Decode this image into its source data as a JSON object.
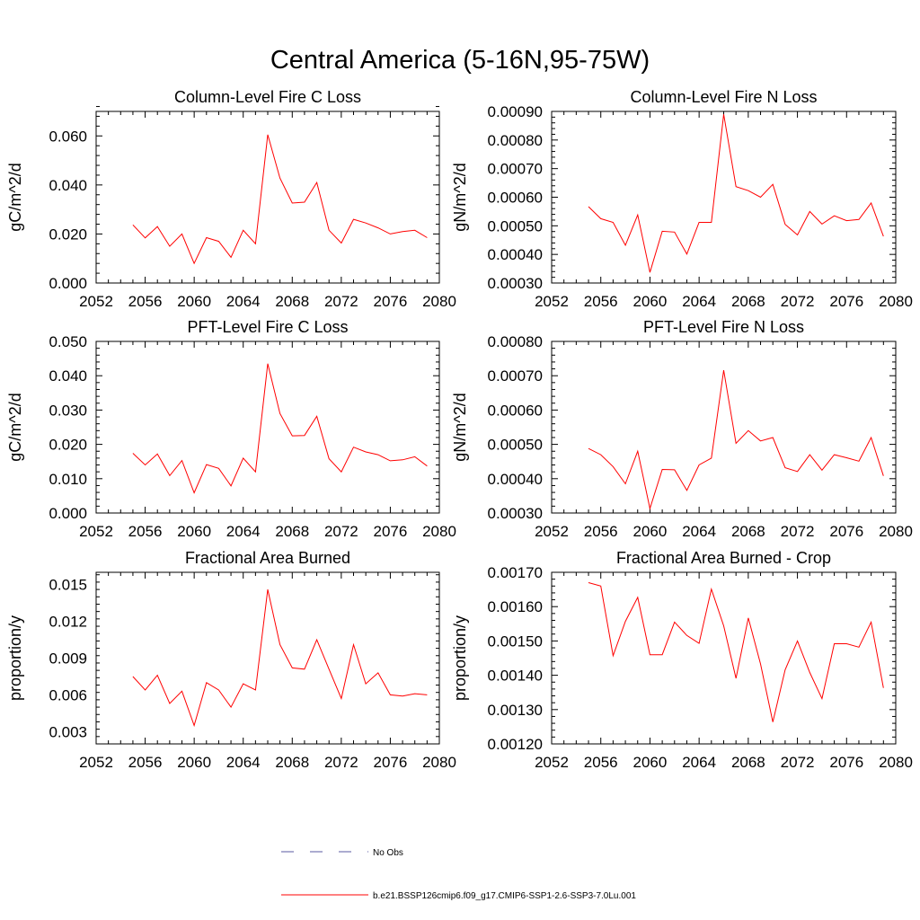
{
  "page_title": "Central America (5-16N,95-75W)",
  "legend": {
    "obs_label": "No Obs",
    "model_label": "b.e21.BSSP126cmip6.f09_g17.CMIP6-SSP1-2.6-SSP3-7.0Lu.001",
    "model_color": "#ff0000",
    "obs_color": "#5a5aa0"
  },
  "chart_data": [
    {
      "type": "line",
      "title": "Column-Level Fire C Loss",
      "ylabel": "gC/m^2/d",
      "xlabel": "",
      "xlim": [
        2052,
        2080
      ],
      "ylim": [
        0,
        0.07
      ],
      "xticks": [
        "2052",
        "2056",
        "2060",
        "2064",
        "2068",
        "2072",
        "2076",
        "2080"
      ],
      "yticks": [
        "0.000",
        "0.020",
        "0.040",
        "0.060"
      ],
      "grid": false,
      "series": [
        {
          "color": "#ff0000",
          "x": [
            2055,
            2056,
            2057,
            2058,
            2059,
            2060,
            2061,
            2062,
            2063,
            2064,
            2065,
            2066,
            2067,
            2068,
            2069,
            2070,
            2071,
            2072,
            2073,
            2074,
            2075,
            2076,
            2077,
            2078,
            2079
          ],
          "y": [
            0.0237,
            0.0184,
            0.023,
            0.015,
            0.02,
            0.008,
            0.0185,
            0.017,
            0.0105,
            0.0215,
            0.016,
            0.0605,
            0.0428,
            0.0326,
            0.033,
            0.041,
            0.0215,
            0.0163,
            0.026,
            0.0245,
            0.0225,
            0.02,
            0.021,
            0.0215,
            0.0185
          ]
        }
      ]
    },
    {
      "type": "line",
      "title": "Column-Level Fire N Loss",
      "ylabel": "gN/m^2/d",
      "xlabel": "",
      "xlim": [
        2052,
        2080
      ],
      "ylim": [
        0.0003,
        0.0009
      ],
      "xticks": [
        "2052",
        "2056",
        "2060",
        "2064",
        "2068",
        "2072",
        "2076",
        "2080"
      ],
      "yticks": [
        "0.00030",
        "0.00040",
        "0.00050",
        "0.00060",
        "0.00070",
        "0.00080",
        "0.00090"
      ],
      "grid": false,
      "series": [
        {
          "color": "#ff0000",
          "x": [
            2055,
            2056,
            2057,
            2058,
            2059,
            2060,
            2061,
            2062,
            2063,
            2064,
            2065,
            2066,
            2067,
            2068,
            2069,
            2070,
            2071,
            2072,
            2073,
            2074,
            2075,
            2076,
            2077,
            2078,
            2079
          ],
          "y": [
            0.000567,
            0.000525,
            0.000512,
            0.000432,
            0.000538,
            0.000337,
            0.000481,
            0.000478,
            0.000401,
            0.000512,
            0.000512,
            0.00089,
            0.000637,
            0.000623,
            0.0006,
            0.000645,
            0.000505,
            0.000468,
            0.00055,
            0.000506,
            0.000535,
            0.000518,
            0.000522,
            0.00058,
            0.000463
          ]
        }
      ]
    },
    {
      "type": "line",
      "title": "PFT-Level Fire C Loss",
      "ylabel": "gC/m^2/d",
      "xlabel": "",
      "xlim": [
        2052,
        2080
      ],
      "ylim": [
        0,
        0.05
      ],
      "xticks": [
        "2052",
        "2056",
        "2060",
        "2064",
        "2068",
        "2072",
        "2076",
        "2080"
      ],
      "yticks": [
        "0.000",
        "0.010",
        "0.020",
        "0.030",
        "0.040",
        "0.050"
      ],
      "grid": false,
      "series": [
        {
          "color": "#ff0000",
          "x": [
            2055,
            2056,
            2057,
            2058,
            2059,
            2060,
            2061,
            2062,
            2063,
            2064,
            2065,
            2066,
            2067,
            2068,
            2069,
            2070,
            2071,
            2072,
            2073,
            2074,
            2075,
            2076,
            2077,
            2078,
            2079
          ],
          "y": [
            0.0174,
            0.014,
            0.0172,
            0.0109,
            0.0153,
            0.0059,
            0.0141,
            0.013,
            0.0079,
            0.016,
            0.012,
            0.0435,
            0.029,
            0.0225,
            0.0226,
            0.0282,
            0.0158,
            0.012,
            0.0192,
            0.0178,
            0.017,
            0.0152,
            0.0155,
            0.0164,
            0.0137
          ]
        }
      ]
    },
    {
      "type": "line",
      "title": "PFT-Level Fire N Loss",
      "ylabel": "gN/m^2/d",
      "xlabel": "",
      "xlim": [
        2052,
        2080
      ],
      "ylim": [
        0.0003,
        0.0008
      ],
      "xticks": [
        "2052",
        "2056",
        "2060",
        "2064",
        "2068",
        "2072",
        "2076",
        "2080"
      ],
      "yticks": [
        "0.00030",
        "0.00040",
        "0.00050",
        "0.00060",
        "0.00070",
        "0.00080"
      ],
      "grid": false,
      "series": [
        {
          "color": "#ff0000",
          "x": [
            2055,
            2056,
            2057,
            2058,
            2059,
            2060,
            2061,
            2062,
            2063,
            2064,
            2065,
            2066,
            2067,
            2068,
            2069,
            2070,
            2071,
            2072,
            2073,
            2074,
            2075,
            2076,
            2077,
            2078,
            2079
          ],
          "y": [
            0.000488,
            0.00047,
            0.000435,
            0.000385,
            0.00048,
            0.000313,
            0.000427,
            0.000426,
            0.000366,
            0.00044,
            0.00046,
            0.000716,
            0.000503,
            0.00054,
            0.00051,
            0.00052,
            0.000432,
            0.000421,
            0.00047,
            0.000425,
            0.00047,
            0.000461,
            0.000451,
            0.00052,
            0.000408
          ]
        }
      ]
    },
    {
      "type": "line",
      "title": "Fractional Area Burned",
      "ylabel": "proportion/y",
      "xlabel": "",
      "xlim": [
        2052,
        2080
      ],
      "ylim": [
        0.002,
        0.016
      ],
      "xticks": [
        "2052",
        "2056",
        "2060",
        "2064",
        "2068",
        "2072",
        "2076",
        "2080"
      ],
      "yticks": [
        "0.003",
        "0.006",
        "0.009",
        "0.012",
        "0.015"
      ],
      "grid": false,
      "series": [
        {
          "color": "#ff0000",
          "x": [
            2055,
            2056,
            2057,
            2058,
            2059,
            2060,
            2061,
            2062,
            2063,
            2064,
            2065,
            2066,
            2067,
            2068,
            2069,
            2070,
            2071,
            2072,
            2073,
            2074,
            2075,
            2076,
            2077,
            2078,
            2079
          ],
          "y": [
            0.0075,
            0.0064,
            0.0076,
            0.0053,
            0.0063,
            0.0035,
            0.007,
            0.0064,
            0.005,
            0.0069,
            0.0064,
            0.0146,
            0.0101,
            0.0082,
            0.0081,
            0.0105,
            0.0081,
            0.0057,
            0.0101,
            0.0069,
            0.0078,
            0.006,
            0.0059,
            0.0061,
            0.006
          ]
        }
      ]
    },
    {
      "type": "line",
      "title": "Fractional Area Burned - Crop",
      "ylabel": "proportion/y",
      "xlabel": "",
      "xlim": [
        2052,
        2080
      ],
      "ylim": [
        0.0012,
        0.0017
      ],
      "xticks": [
        "2052",
        "2056",
        "2060",
        "2064",
        "2068",
        "2072",
        "2076",
        "2080"
      ],
      "yticks": [
        "0.00120",
        "0.00130",
        "0.00140",
        "0.00150",
        "0.00160",
        "0.00170"
      ],
      "grid": false,
      "series": [
        {
          "color": "#ff0000",
          "x": [
            2055,
            2056,
            2057,
            2058,
            2059,
            2060,
            2061,
            2062,
            2063,
            2064,
            2065,
            2066,
            2067,
            2068,
            2069,
            2070,
            2071,
            2072,
            2073,
            2074,
            2075,
            2076,
            2077,
            2078,
            2079
          ],
          "y": [
            0.00167,
            0.00166,
            0.001457,
            0.001557,
            0.001627,
            0.00146,
            0.00146,
            0.001555,
            0.001516,
            0.001493,
            0.001651,
            0.001544,
            0.001391,
            0.001567,
            0.001433,
            0.001264,
            0.001416,
            0.0015,
            0.001408,
            0.001332,
            0.001492,
            0.001492,
            0.001482,
            0.001555,
            0.001363
          ]
        }
      ]
    }
  ]
}
